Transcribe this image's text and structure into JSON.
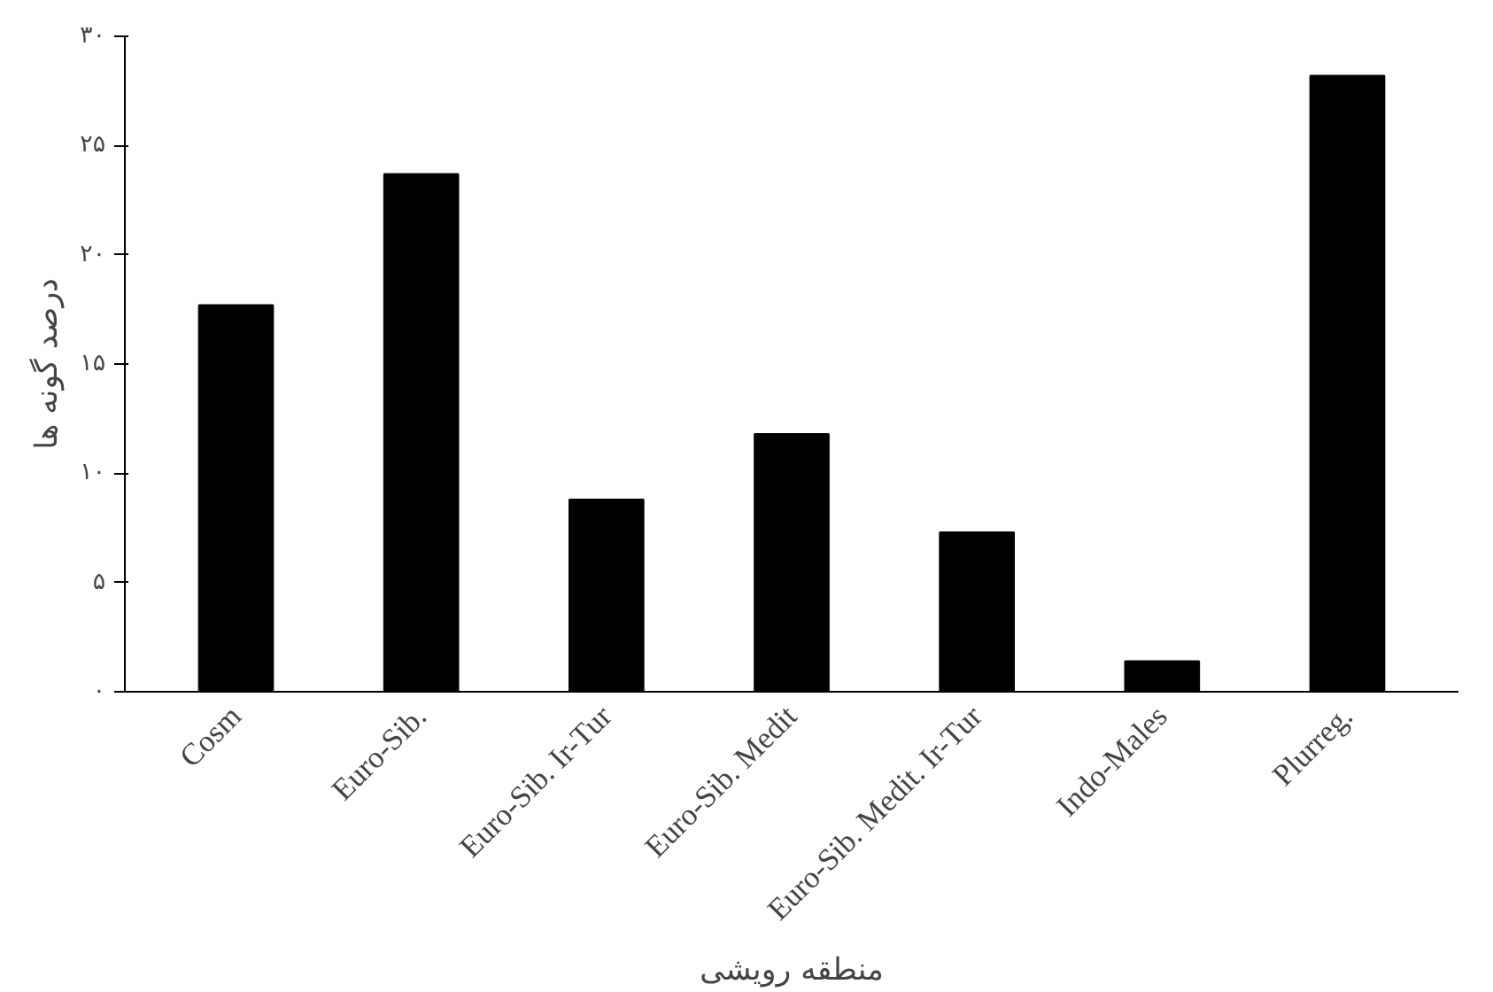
{
  "chart_data": {
    "type": "bar",
    "xlabel": "منطقه رویشی",
    "ylabel": "درصد گونه ها",
    "categories": [
      "Cosm",
      "Euro-Sib.",
      "Euro-Sib. Ir-Tur",
      "Euro-Sib. Medit",
      "Euro-Sib. Medit. Ir-Tur",
      "Indo-Males",
      "Plurreg."
    ],
    "values": [
      17.7,
      23.7,
      8.8,
      11.8,
      7.3,
      1.4,
      28.2
    ],
    "color": "#000000",
    "ylim": [
      0,
      30
    ],
    "yticks": [
      {
        "value": 0,
        "label": "۰"
      },
      {
        "value": 5,
        "label": "۵"
      },
      {
        "value": 10,
        "label": "۱۰"
      },
      {
        "value": 15,
        "label": "۱۵"
      },
      {
        "value": 20,
        "label": "۲۰"
      },
      {
        "value": 25,
        "label": "۲۵"
      },
      {
        "value": 30,
        "label": "۳۰"
      }
    ],
    "grid": false
  }
}
